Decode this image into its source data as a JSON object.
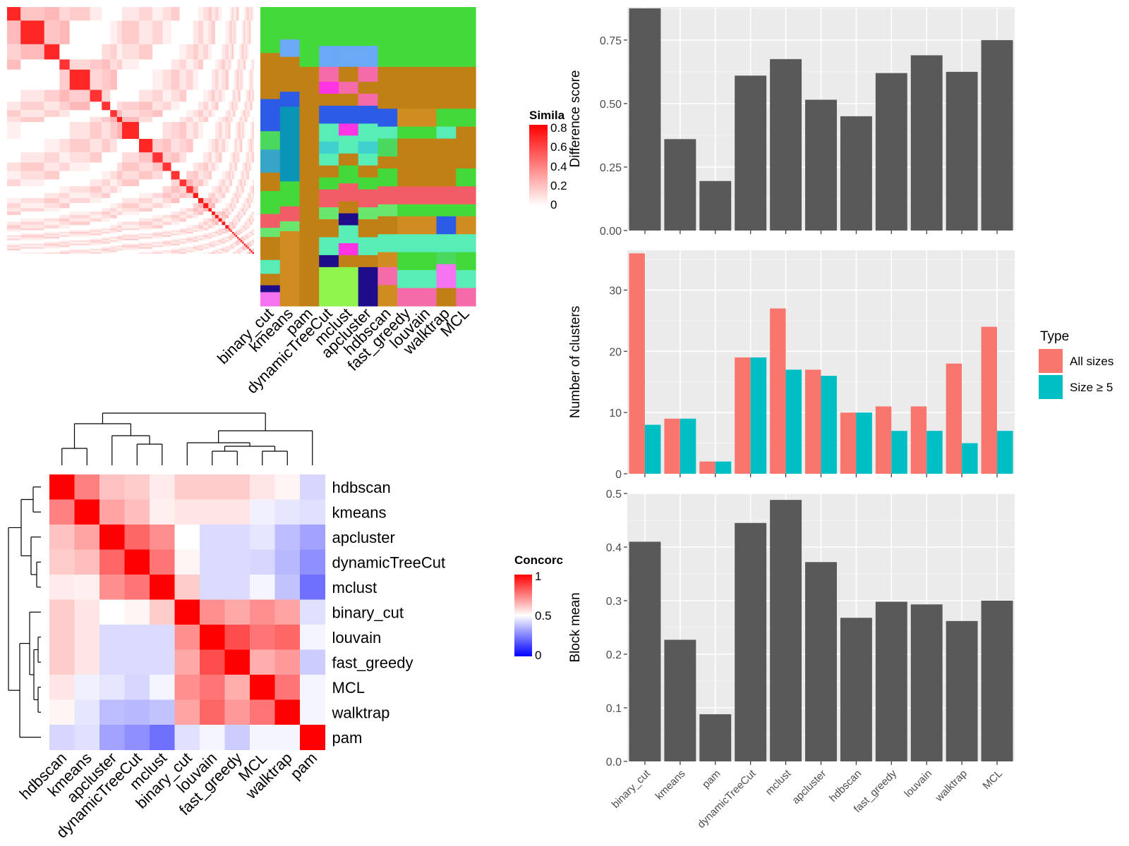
{
  "chart_data": [
    {
      "type": "heatmap",
      "title": "",
      "legend": {
        "title": "Simila",
        "ticks": [
          "0",
          "0.2",
          "0.4",
          "0.6",
          "0.8"
        ],
        "range": [
          0,
          0.85
        ],
        "colors": [
          "#ffffff",
          "#ff0000"
        ]
      },
      "blocks": [
        8,
        14,
        9,
        6,
        12,
        7,
        5,
        4,
        3,
        10,
        8,
        6,
        5,
        5,
        4,
        4,
        3,
        3,
        3,
        2,
        2,
        2,
        2,
        2,
        2,
        1,
        1,
        1,
        1,
        1,
        1,
        1,
        1,
        1,
        1,
        1,
        1,
        1,
        1,
        1
      ],
      "methods": [
        "binary_cut",
        "kmeans",
        "pam",
        "dynamicTreeCut",
        "mclust",
        "apcluster",
        "hdbscan",
        "fast_greedy",
        "louvain",
        "walktrap",
        "MCL"
      ],
      "annotation_segments": [
        [
          [
            20,
            "#44d93b"
          ],
          [
            20,
            "#c18016"
          ],
          [
            14,
            "#2c5be6"
          ],
          [
            8,
            "#4ad85d"
          ],
          [
            10,
            "#36a5c7"
          ],
          [
            8,
            "#c18016"
          ],
          [
            10,
            "#44d93b"
          ],
          [
            6,
            "#f25c67"
          ],
          [
            4,
            "#6ae66f"
          ],
          [
            10,
            "#c18016"
          ],
          [
            6,
            "#58ecb6"
          ],
          [
            5,
            "#c18016"
          ],
          [
            3,
            "#1f0c8a"
          ],
          [
            6,
            "#f572f1"
          ]
        ],
        [
          [
            13,
            "#44d93b"
          ],
          [
            7,
            "#6aa9f6"
          ],
          [
            14,
            "#c18016"
          ],
          [
            6,
            "#2c5be6"
          ],
          [
            30,
            "#0a95b8"
          ],
          [
            10,
            "#44d93b"
          ],
          [
            6,
            "#f25c67"
          ],
          [
            4,
            "#6ae66f"
          ],
          [
            30,
            "#cf8c20"
          ]
        ],
        [
          [
            20,
            "#44d93b"
          ],
          [
            80,
            "#c18016"
          ]
        ],
        [
          [
            13,
            "#44d93b"
          ],
          [
            7,
            "#6aa9f6"
          ],
          [
            5,
            "#f56baa"
          ],
          [
            4,
            "#ff33e3"
          ],
          [
            4,
            "#c18016"
          ],
          [
            6,
            "#2c5be6"
          ],
          [
            6,
            "#58ecb6"
          ],
          [
            4,
            "#3fd0d0"
          ],
          [
            4,
            "#58ecb6"
          ],
          [
            4,
            "#c18016"
          ],
          [
            4,
            "#44d93b"
          ],
          [
            6,
            "#f25c67"
          ],
          [
            4,
            "#6ae66f"
          ],
          [
            6,
            "#c18016"
          ],
          [
            6,
            "#58ecb6"
          ],
          [
            4,
            "#1f0c8a"
          ],
          [
            13,
            "#8ef54c"
          ]
        ],
        [
          [
            13,
            "#44d93b"
          ],
          [
            7,
            "#6aa9f6"
          ],
          [
            5,
            "#c18016"
          ],
          [
            4,
            "#f56baa"
          ],
          [
            4,
            "#c18016"
          ],
          [
            6,
            "#2c5be6"
          ],
          [
            4,
            "#ff33e3"
          ],
          [
            6,
            "#58ecb6"
          ],
          [
            4,
            "#c18016"
          ],
          [
            6,
            "#44d93b"
          ],
          [
            6,
            "#f25c67"
          ],
          [
            4,
            "#c18016"
          ],
          [
            4,
            "#1f0c8a"
          ],
          [
            6,
            "#58ecb6"
          ],
          [
            4,
            "#ff33e3"
          ],
          [
            4,
            "#c18016"
          ],
          [
            13,
            "#8ef54c"
          ]
        ],
        [
          [
            13,
            "#44d93b"
          ],
          [
            7,
            "#6aa9f6"
          ],
          [
            5,
            "#f56baa"
          ],
          [
            4,
            "#c18016"
          ],
          [
            4,
            "#f56baa"
          ],
          [
            6,
            "#2c5be6"
          ],
          [
            6,
            "#58ecb6"
          ],
          [
            4,
            "#3fd0d0"
          ],
          [
            4,
            "#58ecb6"
          ],
          [
            4,
            "#c18016"
          ],
          [
            4,
            "#44d93b"
          ],
          [
            6,
            "#f25c67"
          ],
          [
            4,
            "#6ae66f"
          ],
          [
            6,
            "#c18016"
          ],
          [
            6,
            "#58ecb6"
          ],
          [
            4,
            "#c18016"
          ],
          [
            13,
            "#1f0c8a"
          ]
        ],
        [
          [
            20,
            "#44d93b"
          ],
          [
            14,
            "#c18016"
          ],
          [
            6,
            "#2c5be6"
          ],
          [
            4,
            "#58ecb6"
          ],
          [
            6,
            "#4ad85d"
          ],
          [
            4,
            "#c18016"
          ],
          [
            6,
            "#44d93b"
          ],
          [
            6,
            "#f25c67"
          ],
          [
            4,
            "#6ae66f"
          ],
          [
            6,
            "#c18016"
          ],
          [
            6,
            "#58ecb6"
          ],
          [
            5,
            "#cf8c20"
          ],
          [
            6,
            "#f56baa"
          ],
          [
            7,
            "#cf8c20"
          ]
        ],
        [
          [
            20,
            "#44d93b"
          ],
          [
            14,
            "#c18016"
          ],
          [
            6,
            "#cf8c20"
          ],
          [
            4,
            "#44d93b"
          ],
          [
            16,
            "#c18016"
          ],
          [
            6,
            "#f25c67"
          ],
          [
            4,
            "#44d93b"
          ],
          [
            6,
            "#cf8c20"
          ],
          [
            6,
            "#58ecb6"
          ],
          [
            6,
            "#44d93b"
          ],
          [
            6,
            "#58ecb6"
          ],
          [
            6,
            "#f56baa"
          ]
        ],
        [
          [
            20,
            "#44d93b"
          ],
          [
            14,
            "#c18016"
          ],
          [
            6,
            "#cf8c20"
          ],
          [
            4,
            "#44d93b"
          ],
          [
            16,
            "#c18016"
          ],
          [
            6,
            "#f25c67"
          ],
          [
            4,
            "#44d93b"
          ],
          [
            6,
            "#cf8c20"
          ],
          [
            6,
            "#58ecb6"
          ],
          [
            6,
            "#44d93b"
          ],
          [
            6,
            "#58ecb6"
          ],
          [
            6,
            "#f56baa"
          ]
        ],
        [
          [
            20,
            "#44d93b"
          ],
          [
            14,
            "#c18016"
          ],
          [
            6,
            "#44d93b"
          ],
          [
            4,
            "#58ecb6"
          ],
          [
            16,
            "#c18016"
          ],
          [
            6,
            "#f25c67"
          ],
          [
            4,
            "#44d93b"
          ],
          [
            6,
            "#2c5be6"
          ],
          [
            6,
            "#58ecb6"
          ],
          [
            4,
            "#4ad85d"
          ],
          [
            8,
            "#f572f1"
          ],
          [
            6,
            "#c18016"
          ]
        ],
        [
          [
            20,
            "#44d93b"
          ],
          [
            14,
            "#c18016"
          ],
          [
            6,
            "#44d93b"
          ],
          [
            4,
            "#c18016"
          ],
          [
            10,
            "#c18016"
          ],
          [
            6,
            "#44d93b"
          ],
          [
            6,
            "#f25c67"
          ],
          [
            4,
            "#44d93b"
          ],
          [
            6,
            "#cf8c20"
          ],
          [
            6,
            "#58ecb6"
          ],
          [
            6,
            "#44d93b"
          ],
          [
            6,
            "#58ecb6"
          ],
          [
            6,
            "#f56baa"
          ]
        ]
      ]
    },
    {
      "type": "heatmap",
      "title": "",
      "legend": {
        "title": "Concorc",
        "ticks": [
          "0",
          "0.5",
          "1"
        ],
        "range": [
          0,
          1
        ],
        "colors": [
          "#0000ff",
          "#ffffff",
          "#ff0000"
        ]
      },
      "rows": [
        "hdbscan",
        "kmeans",
        "apcluster",
        "dynamicTreeCut",
        "mclust",
        "binary_cut",
        "louvain",
        "fast_greedy",
        "MCL",
        "walktrap",
        "pam"
      ],
      "columns": [
        "hdbscan",
        "kmeans",
        "apcluster",
        "dynamicTreeCut",
        "mclust",
        "binary_cut",
        "louvain",
        "fast_greedy",
        "MCL",
        "walktrap",
        "pam"
      ],
      "values": [
        [
          1.0,
          0.75,
          0.62,
          0.6,
          0.54,
          0.6,
          0.6,
          0.6,
          0.55,
          0.52,
          0.42
        ],
        [
          0.75,
          1.0,
          0.68,
          0.63,
          0.53,
          0.55,
          0.55,
          0.55,
          0.47,
          0.45,
          0.44
        ],
        [
          0.62,
          0.68,
          1.0,
          0.8,
          0.72,
          0.5,
          0.43,
          0.43,
          0.45,
          0.37,
          0.32
        ],
        [
          0.6,
          0.63,
          0.8,
          1.0,
          0.77,
          0.52,
          0.43,
          0.43,
          0.42,
          0.36,
          0.28
        ],
        [
          0.54,
          0.53,
          0.72,
          0.77,
          1.0,
          0.6,
          0.43,
          0.43,
          0.48,
          0.38,
          0.22
        ],
        [
          0.6,
          0.55,
          0.5,
          0.52,
          0.6,
          1.0,
          0.72,
          0.67,
          0.72,
          0.68,
          0.44
        ],
        [
          0.6,
          0.55,
          0.43,
          0.43,
          0.43,
          0.72,
          1.0,
          0.85,
          0.77,
          0.8,
          0.48
        ],
        [
          0.6,
          0.55,
          0.43,
          0.43,
          0.43,
          0.67,
          0.85,
          1.0,
          0.66,
          0.7,
          0.4
        ],
        [
          0.55,
          0.47,
          0.45,
          0.42,
          0.48,
          0.72,
          0.77,
          0.66,
          1.0,
          0.77,
          0.48
        ],
        [
          0.52,
          0.45,
          0.37,
          0.36,
          0.38,
          0.68,
          0.8,
          0.7,
          0.77,
          1.0,
          0.48
        ],
        [
          0.42,
          0.44,
          0.32,
          0.28,
          0.22,
          0.44,
          0.48,
          0.4,
          0.48,
          0.48,
          1.0
        ]
      ]
    },
    {
      "type": "bar",
      "title": "",
      "xlabel": "",
      "ylabel": "Difference score",
      "ylim": [
        0,
        0.88
      ],
      "yticks": [
        "0.00",
        "0.25",
        "0.50",
        "0.75"
      ],
      "categories": [
        "binary_cut",
        "kmeans",
        "pam",
        "dynamicTreeCut",
        "mclust",
        "apcluster",
        "hdbscan",
        "fast_greedy",
        "louvain",
        "walktrap",
        "MCL"
      ],
      "values": [
        0.875,
        0.36,
        0.195,
        0.61,
        0.675,
        0.515,
        0.45,
        0.62,
        0.69,
        0.625,
        0.75
      ]
    },
    {
      "type": "bar",
      "title": "",
      "xlabel": "",
      "ylabel": "Number of clusters",
      "ylim": [
        0,
        36.5
      ],
      "yticks": [
        "0",
        "10",
        "20",
        "30"
      ],
      "legend": {
        "title": "Type",
        "position": "right"
      },
      "categories": [
        "binary_cut",
        "kmeans",
        "pam",
        "dynamicTreeCut",
        "mclust",
        "apcluster",
        "hdbscan",
        "fast_greedy",
        "louvain",
        "walktrap",
        "MCL"
      ],
      "series": [
        {
          "name": "All sizes",
          "color": "#f8766d",
          "values": [
            36,
            9,
            2,
            19,
            27,
            17,
            10,
            11,
            11,
            18,
            24
          ]
        },
        {
          "name": "Size ≥ 5",
          "color": "#00bfc4",
          "values": [
            8,
            9,
            2,
            19,
            17,
            16,
            10,
            7,
            7,
            5,
            7
          ]
        }
      ]
    },
    {
      "type": "bar",
      "title": "",
      "xlabel": "",
      "ylabel": "Block mean",
      "ylim": [
        0,
        0.5
      ],
      "yticks": [
        "0.0",
        "0.1",
        "0.2",
        "0.3",
        "0.4",
        "0.5"
      ],
      "categories": [
        "binary_cut",
        "kmeans",
        "pam",
        "dynamicTreeCut",
        "mclust",
        "apcluster",
        "hdbscan",
        "fast_greedy",
        "louvain",
        "walktrap",
        "MCL"
      ],
      "values": [
        0.41,
        0.227,
        0.088,
        0.445,
        0.488,
        0.372,
        0.268,
        0.298,
        0.293,
        0.262,
        0.3
      ]
    }
  ]
}
